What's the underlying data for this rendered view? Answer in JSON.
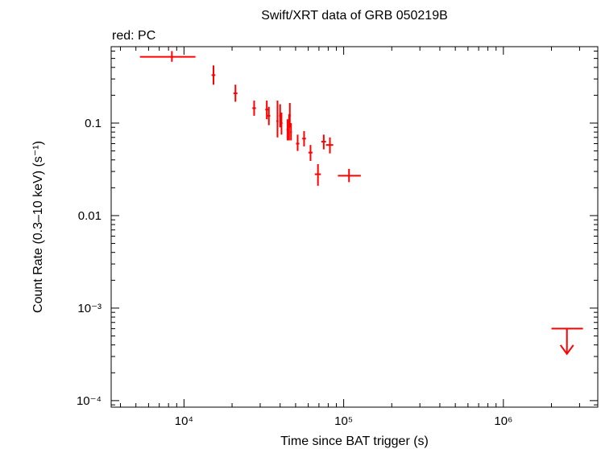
{
  "chart_data": {
    "type": "scatter",
    "title": "Swift/XRT data of GRB 050219B",
    "subtitle": "red: PC",
    "xlabel": "Time since BAT trigger (s)",
    "ylabel": "Count Rate (0.3–10 keV) (s⁻¹)",
    "x_scale": "log",
    "y_scale": "log",
    "xlim": [
      3500,
      3900000
    ],
    "ylim": [
      8.5e-05,
      0.67
    ],
    "grid": false,
    "x_ticks": [
      {
        "value": 10000,
        "label": "10⁴"
      },
      {
        "value": 100000,
        "label": "10⁵"
      },
      {
        "value": 1000000,
        "label": "10⁶"
      }
    ],
    "y_ticks": [
      {
        "value": 0.0001,
        "label": "10⁻⁴"
      },
      {
        "value": 0.001,
        "label": "10⁻³"
      },
      {
        "value": 0.01,
        "label": "0.01"
      },
      {
        "value": 0.1,
        "label": "0.1"
      }
    ],
    "series": [
      {
        "color": "#ff0000",
        "points": [
          {
            "x": 8400,
            "xlo": 5300,
            "xhi": 11800,
            "y": 0.52,
            "ylo": 0.46,
            "yhi": 0.6
          },
          {
            "x": 15300,
            "xlo": 14900,
            "xhi": 15700,
            "y": 0.33,
            "ylo": 0.26,
            "yhi": 0.42
          },
          {
            "x": 21000,
            "xlo": 20400,
            "xhi": 21600,
            "y": 0.21,
            "ylo": 0.17,
            "yhi": 0.26
          },
          {
            "x": 27500,
            "xlo": 26800,
            "xhi": 28200,
            "y": 0.145,
            "ylo": 0.12,
            "yhi": 0.175
          },
          {
            "x": 33000,
            "xlo": 32300,
            "xhi": 33700,
            "y": 0.14,
            "ylo": 0.11,
            "yhi": 0.175
          },
          {
            "x": 34000,
            "xlo": 33300,
            "xhi": 34700,
            "y": 0.12,
            "ylo": 0.095,
            "yhi": 0.15
          },
          {
            "x": 38500,
            "xlo": 37900,
            "xhi": 39100,
            "y": 0.105,
            "ylo": 0.07,
            "yhi": 0.175
          },
          {
            "x": 40000,
            "xlo": 39400,
            "xhi": 40600,
            "y": 0.12,
            "ylo": 0.09,
            "yhi": 0.16
          },
          {
            "x": 40800,
            "xlo": 40200,
            "xhi": 41400,
            "y": 0.1,
            "ylo": 0.075,
            "yhi": 0.13
          },
          {
            "x": 44500,
            "xlo": 43900,
            "xhi": 45100,
            "y": 0.085,
            "ylo": 0.065,
            "yhi": 0.11
          },
          {
            "x": 45500,
            "xlo": 44900,
            "xhi": 46100,
            "y": 0.09,
            "ylo": 0.065,
            "yhi": 0.125
          },
          {
            "x": 46000,
            "xlo": 45400,
            "xhi": 46600,
            "y": 0.12,
            "ylo": 0.09,
            "yhi": 0.165
          },
          {
            "x": 46800,
            "xlo": 46200,
            "xhi": 47400,
            "y": 0.08,
            "ylo": 0.065,
            "yhi": 0.1
          },
          {
            "x": 51500,
            "xlo": 50300,
            "xhi": 52700,
            "y": 0.06,
            "ylo": 0.05,
            "yhi": 0.075
          },
          {
            "x": 56500,
            "xlo": 55000,
            "xhi": 58000,
            "y": 0.068,
            "ylo": 0.056,
            "yhi": 0.082
          },
          {
            "x": 62000,
            "xlo": 60200,
            "xhi": 63800,
            "y": 0.048,
            "ylo": 0.039,
            "yhi": 0.058
          },
          {
            "x": 69000,
            "xlo": 66000,
            "xhi": 72000,
            "y": 0.028,
            "ylo": 0.021,
            "yhi": 0.036
          },
          {
            "x": 75000,
            "xlo": 72500,
            "xhi": 77500,
            "y": 0.063,
            "ylo": 0.052,
            "yhi": 0.075
          },
          {
            "x": 82000,
            "xlo": 77500,
            "xhi": 86000,
            "y": 0.058,
            "ylo": 0.047,
            "yhi": 0.07
          },
          {
            "x": 108000,
            "xlo": 92000,
            "xhi": 128000,
            "y": 0.027,
            "ylo": 0.023,
            "yhi": 0.032
          }
        ],
        "upper_limits": [
          {
            "x": 2500000,
            "xlo": 2000000,
            "xhi": 3150000,
            "y": 0.0006,
            "arrow_to": 0.00032
          }
        ]
      }
    ]
  }
}
